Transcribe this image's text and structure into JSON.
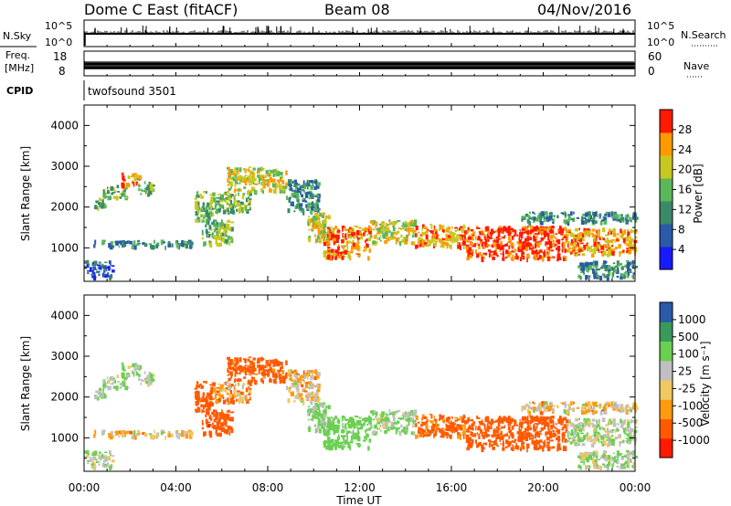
{
  "header": {
    "station": "Dome C East (fitACF)",
    "beam": "Beam 08",
    "date": "04/Nov/2016"
  },
  "aux_panels": {
    "nsky": {
      "label": "N.Sky",
      "right_label": "N.Search",
      "left_ticks": [
        "10^5",
        "10^0"
      ],
      "right_ticks": [
        "10^5",
        "10^0"
      ]
    },
    "freq": {
      "label_line1": "Freq.",
      "label_line2": "[MHz]",
      "right_label": "Nave",
      "left_ticks": [
        "18",
        "8"
      ],
      "right_ticks": [
        "60",
        "0"
      ]
    },
    "cpid": {
      "label": "CPID",
      "value": "twofsound 3501"
    }
  },
  "x_axis": {
    "label": "Time UT",
    "ticks": [
      "00:00",
      "04:00",
      "08:00",
      "12:00",
      "16:00",
      "20:00",
      "00:00"
    ],
    "range_hours": [
      0,
      24
    ]
  },
  "chart_data": [
    {
      "type": "heatmap",
      "quantity": "Power",
      "ylabel": "Slant Range [km]",
      "ylim": [
        180,
        4500
      ],
      "y_ticks": [
        "1000",
        "2000",
        "3000",
        "4000"
      ],
      "y_tick_values": [
        1000,
        2000,
        3000,
        4000
      ],
      "colorbar": {
        "label": "Power [dB]",
        "tick_labels": [
          "28",
          "24",
          "20",
          "16",
          "12",
          "8",
          "4"
        ],
        "range": [
          0,
          32
        ],
        "colors_bottom_to_top": [
          "#1a1aff",
          "#2a5aa8",
          "#3a8a6a",
          "#5ab85a",
          "#c8c820",
          "#ff9a00",
          "#ff1a00"
        ]
      },
      "echo_regions": [
        {
          "t_start": 0.4,
          "t_end": 0.9,
          "range_km": [
            2000,
            2250
          ],
          "level": 3
        },
        {
          "t_start": 0.8,
          "t_end": 1.8,
          "range_km": [
            2250,
            2550
          ],
          "level": 3
        },
        {
          "t_start": 1.6,
          "t_end": 2.4,
          "range_km": [
            2550,
            2850
          ],
          "level": 5
        },
        {
          "t_start": 2.2,
          "t_end": 3.0,
          "range_km": [
            2350,
            2650
          ],
          "level": 3
        },
        {
          "t_start": 0.0,
          "t_end": 1.2,
          "range_km": [
            300,
            700
          ],
          "level": 1
        },
        {
          "t_start": 0.4,
          "t_end": 4.8,
          "range_km": [
            1050,
            1200
          ],
          "level": 2
        },
        {
          "t_start": 4.8,
          "t_end": 5.6,
          "range_km": [
            1700,
            2400
          ],
          "level": 3
        },
        {
          "t_start": 5.1,
          "t_end": 6.4,
          "range_km": [
            1100,
            1700
          ],
          "level": 3
        },
        {
          "t_start": 5.6,
          "t_end": 7.2,
          "range_km": [
            1900,
            2400
          ],
          "level": 3
        },
        {
          "t_start": 6.2,
          "t_end": 8.8,
          "range_km": [
            2400,
            3000
          ],
          "level": 4
        },
        {
          "t_start": 8.8,
          "t_end": 10.2,
          "range_km": [
            1900,
            2700
          ],
          "level": 2
        },
        {
          "t_start": 9.7,
          "t_end": 10.7,
          "range_km": [
            1200,
            1900
          ],
          "level": 4
        },
        {
          "t_start": 10.4,
          "t_end": 12.4,
          "range_km": [
            800,
            1550
          ],
          "level": 5
        },
        {
          "t_start": 12.4,
          "t_end": 14.4,
          "range_km": [
            1150,
            1700
          ],
          "level": 4
        },
        {
          "t_start": 14.4,
          "t_end": 16.6,
          "range_km": [
            1050,
            1600
          ],
          "level": 5
        },
        {
          "t_start": 16.6,
          "t_end": 21.0,
          "range_km": [
            750,
            1550
          ],
          "level": 6
        },
        {
          "t_start": 21.0,
          "t_end": 24.0,
          "range_km": [
            850,
            1500
          ],
          "level": 5
        },
        {
          "t_start": 19.0,
          "t_end": 24.0,
          "range_km": [
            1650,
            1900
          ],
          "level": 2
        },
        {
          "t_start": 21.5,
          "t_end": 24.0,
          "range_km": [
            300,
            700
          ],
          "level": 2
        }
      ]
    },
    {
      "type": "heatmap",
      "quantity": "Velocity",
      "ylabel": "Slant Range [km]",
      "ylim": [
        180,
        4500
      ],
      "y_ticks": [
        "1000",
        "2000",
        "3000",
        "4000"
      ],
      "y_tick_values": [
        1000,
        2000,
        3000,
        4000
      ],
      "colorbar": {
        "label": "Velocity [m s⁻¹]",
        "tick_labels": [
          "1000",
          "500",
          "100",
          "25",
          "-25",
          "-100",
          "-500",
          "-1000"
        ],
        "range": [
          -1000,
          1000
        ],
        "colors_bottom_to_top": [
          "#ff1a00",
          "#ff5a00",
          "#ff9a10",
          "#f0c860",
          "#c0c0c0",
          "#6ad050",
          "#3a9a5a",
          "#2a5aa8"
        ]
      },
      "echo_regions": [
        {
          "t_start": 0.4,
          "t_end": 0.9,
          "range_km": [
            2000,
            2250
          ],
          "velocity": 150
        },
        {
          "t_start": 0.8,
          "t_end": 1.8,
          "range_km": [
            2250,
            2550
          ],
          "velocity": 120
        },
        {
          "t_start": 1.6,
          "t_end": 2.4,
          "range_km": [
            2550,
            2850
          ],
          "velocity": 110
        },
        {
          "t_start": 2.2,
          "t_end": 3.0,
          "range_km": [
            2350,
            2650
          ],
          "velocity": 100
        },
        {
          "t_start": 0.0,
          "t_end": 1.2,
          "range_km": [
            300,
            700
          ],
          "velocity": 80
        },
        {
          "t_start": 0.4,
          "t_end": 4.8,
          "range_km": [
            1050,
            1200
          ],
          "velocity": 0
        },
        {
          "t_start": 4.8,
          "t_end": 5.6,
          "range_km": [
            1700,
            2400
          ],
          "velocity": -300
        },
        {
          "t_start": 5.1,
          "t_end": 6.4,
          "range_km": [
            1100,
            1700
          ],
          "velocity": -400
        },
        {
          "t_start": 5.6,
          "t_end": 7.2,
          "range_km": [
            1900,
            2400
          ],
          "velocity": -50
        },
        {
          "t_start": 6.2,
          "t_end": 8.8,
          "range_km": [
            2400,
            3000
          ],
          "velocity": -200
        },
        {
          "t_start": 8.8,
          "t_end": 10.2,
          "range_km": [
            1900,
            2700
          ],
          "velocity": 0
        },
        {
          "t_start": 9.7,
          "t_end": 10.7,
          "range_km": [
            1200,
            1900
          ],
          "velocity": 150
        },
        {
          "t_start": 10.4,
          "t_end": 12.4,
          "range_km": [
            800,
            1550
          ],
          "velocity": 200
        },
        {
          "t_start": 12.4,
          "t_end": 14.4,
          "range_km": [
            1150,
            1700
          ],
          "velocity": 120
        },
        {
          "t_start": 14.4,
          "t_end": 16.6,
          "range_km": [
            1050,
            1600
          ],
          "velocity": -150
        },
        {
          "t_start": 16.6,
          "t_end": 21.0,
          "range_km": [
            750,
            1550
          ],
          "velocity": -300
        },
        {
          "t_start": 21.0,
          "t_end": 24.0,
          "range_km": [
            850,
            1500
          ],
          "velocity": 90
        },
        {
          "t_start": 19.0,
          "t_end": 24.0,
          "range_km": [
            1650,
            1900
          ],
          "velocity": 0
        },
        {
          "t_start": 21.5,
          "t_end": 24.0,
          "range_km": [
            300,
            700
          ],
          "velocity": 100
        }
      ]
    }
  ],
  "colors": {
    "trace": "#000000",
    "axis": "#000000"
  }
}
